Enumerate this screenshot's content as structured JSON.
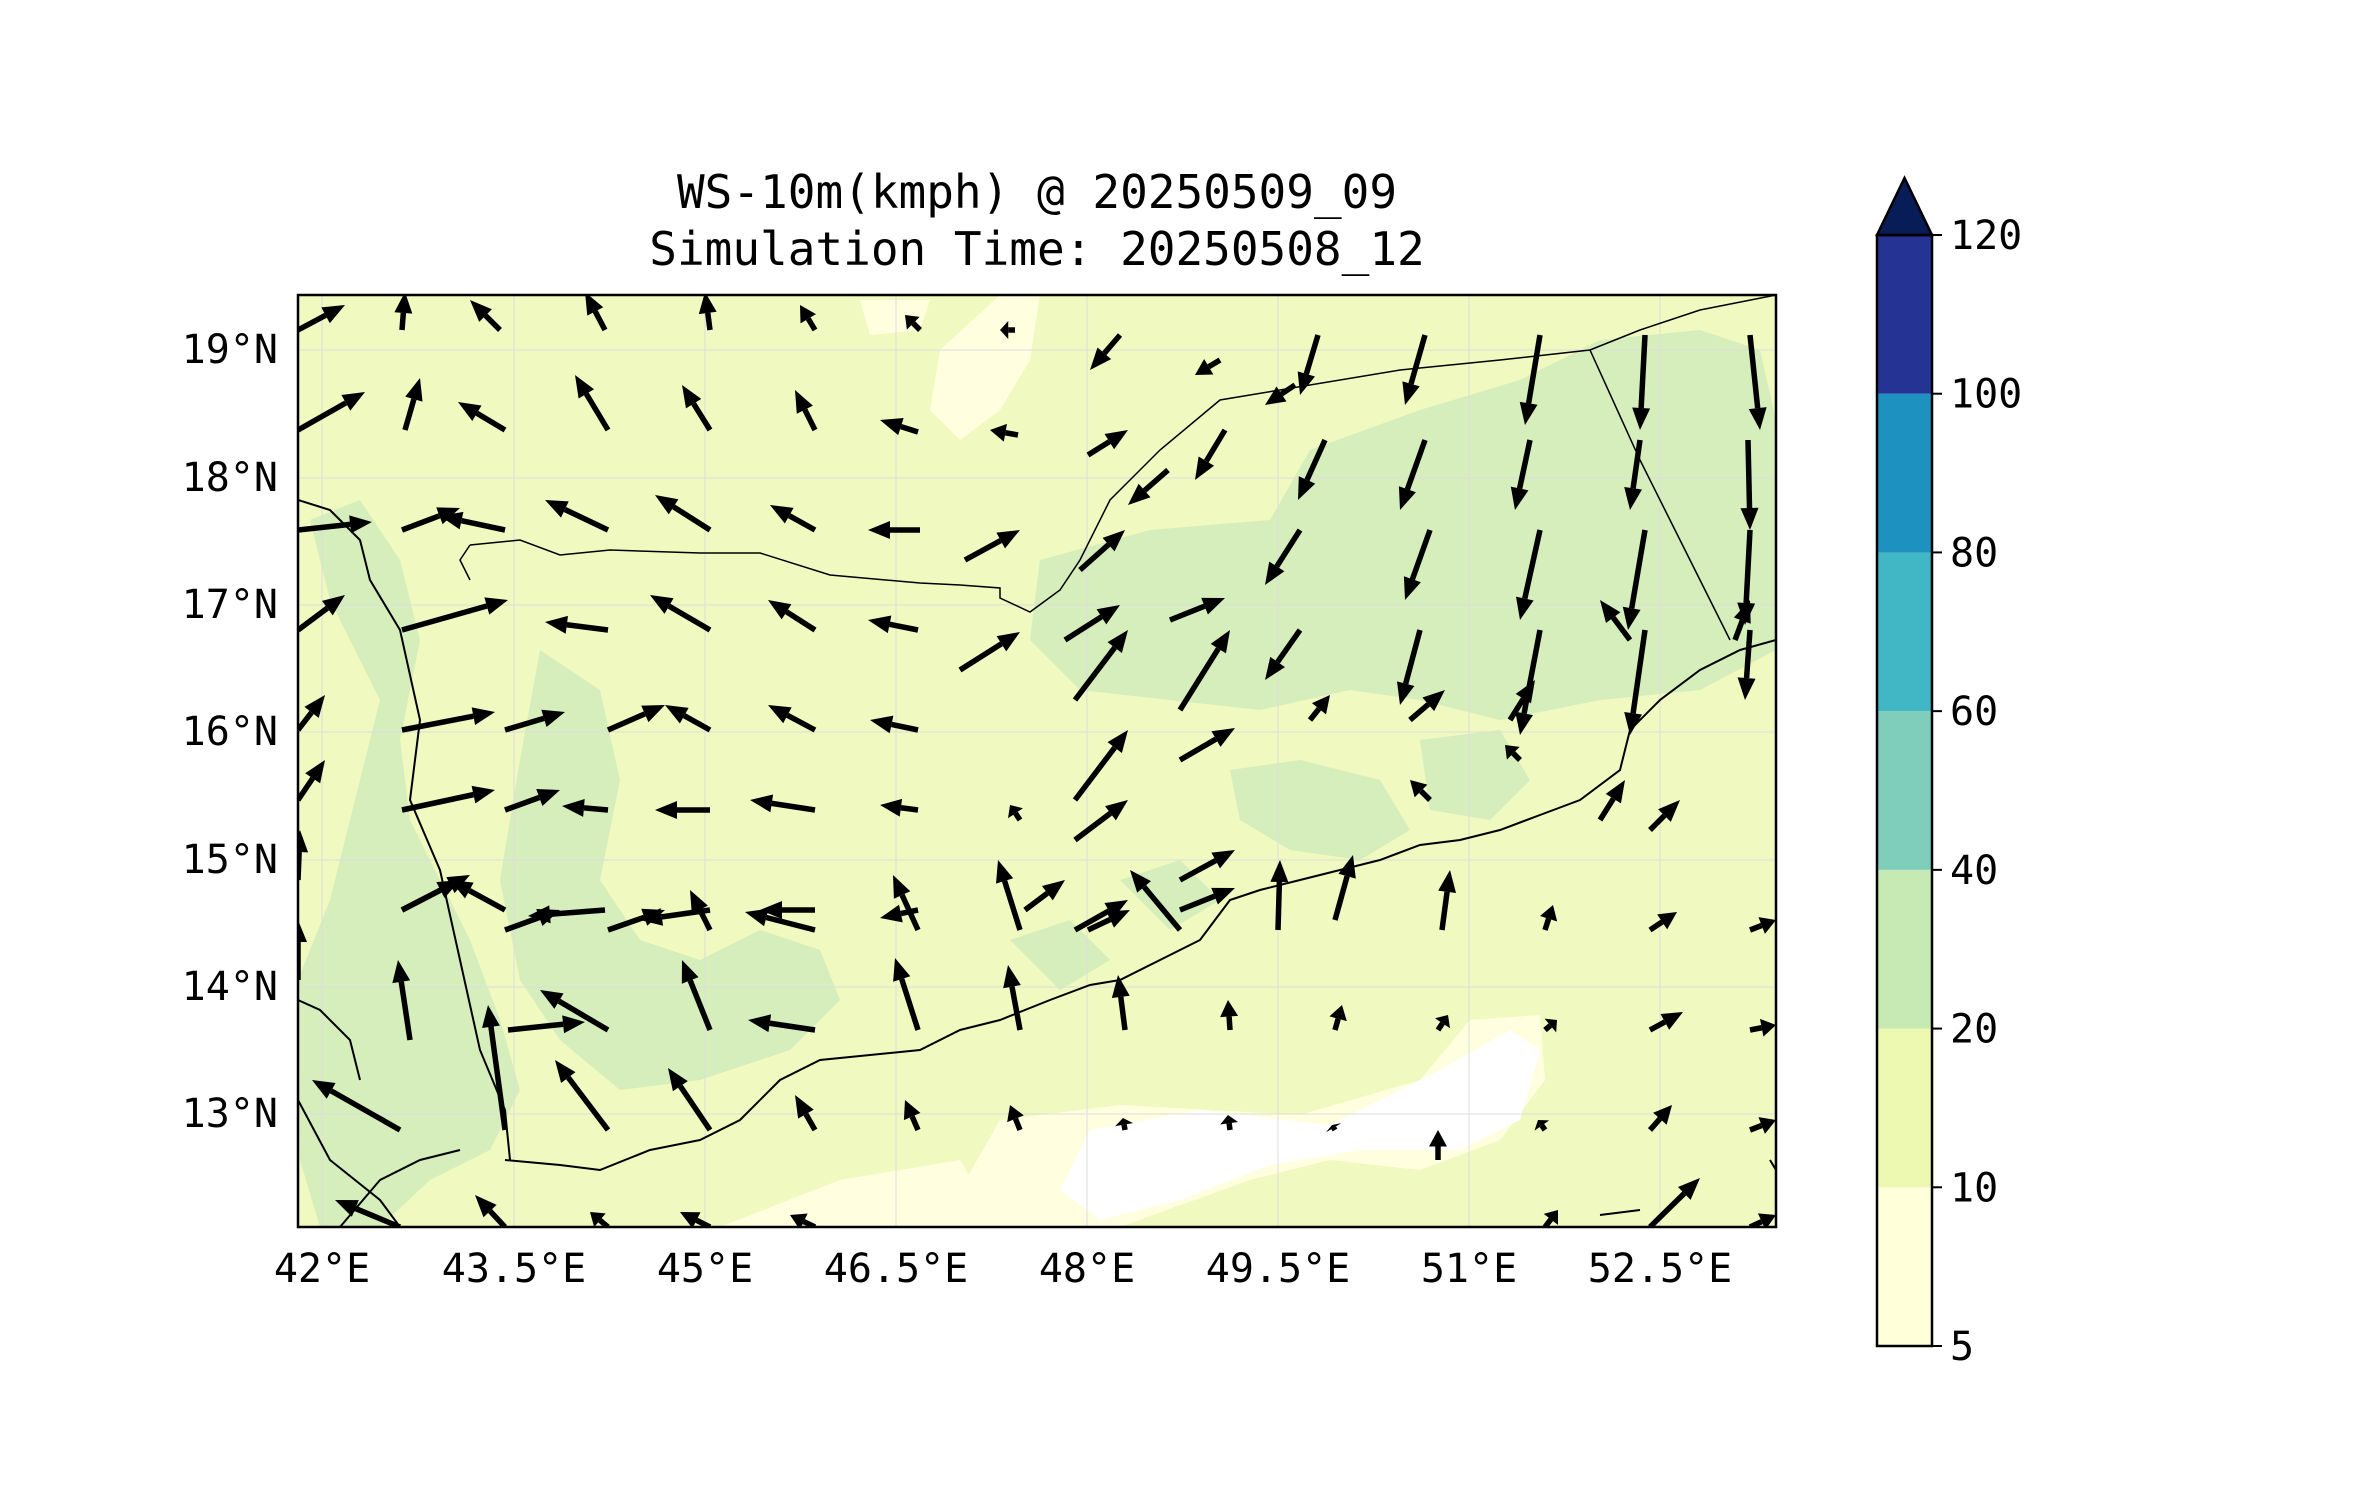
{
  "title": {
    "line1": "WS-10m(kmph) @ 20250509_09",
    "line2": "Simulation Time: 20250508_12"
  },
  "axes": {
    "lon_ticks": [
      "42°E",
      "43.5°E",
      "45°E",
      "46.5°E",
      "48°E",
      "49.5°E",
      "51°E",
      "52.5°E"
    ],
    "lat_ticks": [
      "19°N",
      "18°N",
      "17°N",
      "16°N",
      "15°N",
      "14°N",
      "13°N"
    ]
  },
  "colorbar": {
    "levels": [
      "5",
      "10",
      "20",
      "40",
      "60",
      "80",
      "100",
      "120"
    ],
    "colors": [
      "#ffffd9",
      "#edf8b1",
      "#c7e9b4",
      "#7fcdbb",
      "#41b6c4",
      "#1d91c0",
      "#253494",
      "#081d58"
    ],
    "extend": "max"
  },
  "colors": {
    "ocean_land_bg": "#f0f9bf",
    "calm": "#ffffe0",
    "moderate": "#d5eebc",
    "arrows": "#000000",
    "coastline": "#000000"
  }
}
